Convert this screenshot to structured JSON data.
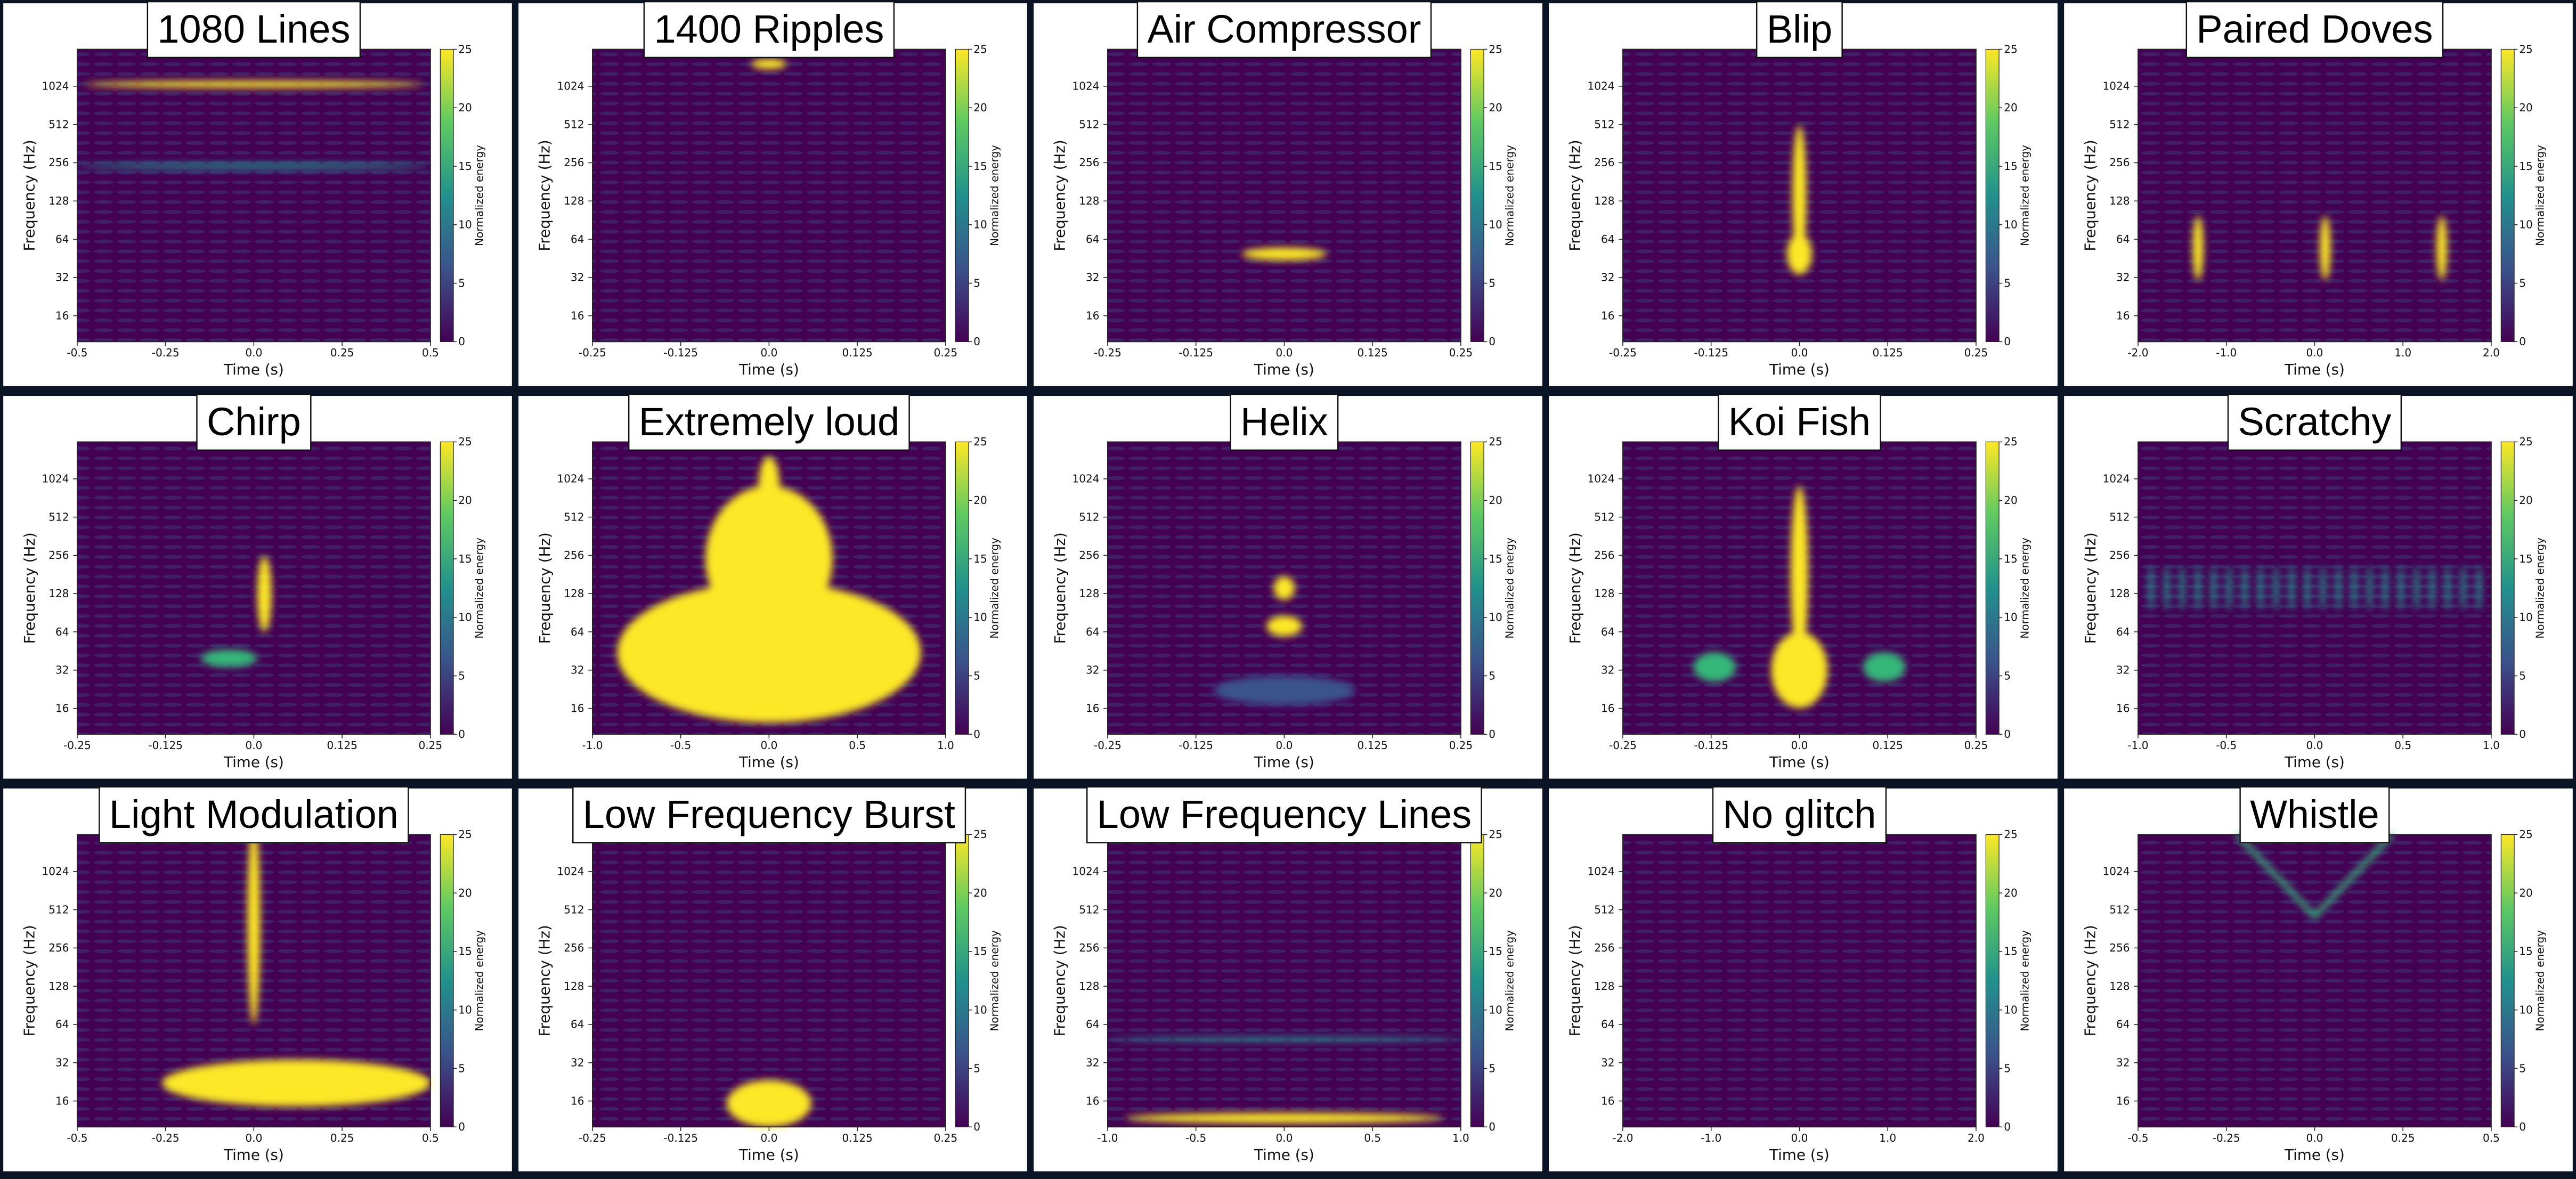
{
  "chart_data": [
    {
      "type": "spectrogram",
      "title": "1080 Lines",
      "x_label": "Time (s)",
      "y_label": "Frequency (Hz)",
      "colorbar_label": "Normalized energy",
      "cmap": "viridis",
      "y_log": true,
      "xlim": [
        -0.5,
        0.5
      ],
      "xticks": [
        -0.5,
        -0.25,
        {
          "value": 0,
          "label": "0.0"
        },
        0.25,
        0.5
      ],
      "ylim": [
        10,
        2000
      ],
      "yticks": [
        16,
        32,
        64,
        128,
        256,
        512,
        1024
      ],
      "clim": [
        0,
        25
      ],
      "cticks": [
        0,
        5,
        10,
        15,
        20,
        25
      ]
    },
    {
      "type": "spectrogram",
      "title": "1400 Ripples",
      "x_label": "Time (s)",
      "y_label": "Frequency (Hz)",
      "colorbar_label": "Normalized energy",
      "cmap": "viridis",
      "y_log": true,
      "xlim": [
        -0.25,
        0.25
      ],
      "xticks": [
        -0.25,
        -0.125,
        {
          "value": 0,
          "label": "0.0"
        },
        0.125,
        0.25
      ],
      "ylim": [
        10,
        2000
      ],
      "yticks": [
        16,
        32,
        64,
        128,
        256,
        512,
        1024
      ],
      "clim": [
        0,
        25
      ],
      "cticks": [
        0,
        5,
        10,
        15,
        20,
        25
      ]
    },
    {
      "type": "spectrogram",
      "title": "Air Compressor",
      "x_label": "Time (s)",
      "y_label": "Frequency (Hz)",
      "colorbar_label": "Normalized energy",
      "cmap": "viridis",
      "y_log": true,
      "xlim": [
        -0.25,
        0.25
      ],
      "xticks": [
        -0.25,
        -0.125,
        {
          "value": 0,
          "label": "0.0"
        },
        0.125,
        0.25
      ],
      "ylim": [
        10,
        2000
      ],
      "yticks": [
        16,
        32,
        64,
        128,
        256,
        512,
        1024
      ],
      "clim": [
        0,
        25
      ],
      "cticks": [
        0,
        5,
        10,
        15,
        20,
        25
      ]
    },
    {
      "type": "spectrogram",
      "title": "Blip",
      "x_label": "Time (s)",
      "y_label": "Frequency (Hz)",
      "colorbar_label": "Normalized energy",
      "cmap": "viridis",
      "y_log": true,
      "xlim": [
        -0.25,
        0.25
      ],
      "xticks": [
        -0.25,
        -0.125,
        {
          "value": 0,
          "label": "0.0"
        },
        0.125,
        0.25
      ],
      "ylim": [
        10,
        2000
      ],
      "yticks": [
        16,
        32,
        64,
        128,
        256,
        512,
        1024
      ],
      "clim": [
        0,
        25
      ],
      "cticks": [
        0,
        5,
        10,
        15,
        20,
        25
      ]
    },
    {
      "type": "spectrogram",
      "title": "Paired Doves",
      "x_label": "Time (s)",
      "y_label": "Frequency (Hz)",
      "colorbar_label": "Normalized energy",
      "cmap": "viridis",
      "y_log": true,
      "xlim": [
        -2,
        2
      ],
      "xticks": [
        {
          "value": -2,
          "label": "-2.0"
        },
        {
          "value": -1,
          "label": "-1.0"
        },
        {
          "value": 0,
          "label": "0.0"
        },
        {
          "value": 1,
          "label": "1.0"
        },
        {
          "value": 2,
          "label": "2.0"
        }
      ],
      "ylim": [
        10,
        2000
      ],
      "yticks": [
        16,
        32,
        64,
        128,
        256,
        512,
        1024
      ],
      "clim": [
        0,
        25
      ],
      "cticks": [
        0,
        5,
        10,
        15,
        20,
        25
      ]
    },
    {
      "type": "spectrogram",
      "title": "Chirp",
      "x_label": "Time (s)",
      "y_label": "Frequency (Hz)",
      "colorbar_label": "Normalized energy",
      "cmap": "viridis",
      "y_log": true,
      "xlim": [
        -0.25,
        0.25
      ],
      "xticks": [
        -0.25,
        -0.125,
        {
          "value": 0,
          "label": "0.0"
        },
        0.125,
        0.25
      ],
      "ylim": [
        10,
        2000
      ],
      "yticks": [
        16,
        32,
        64,
        128,
        256,
        512,
        1024
      ],
      "clim": [
        0,
        25
      ],
      "cticks": [
        0,
        5,
        10,
        15,
        20,
        25
      ]
    },
    {
      "type": "spectrogram",
      "title": "Extremely loud",
      "x_label": "Time (s)",
      "y_label": "Frequency (Hz)",
      "colorbar_label": "Normalized energy",
      "cmap": "viridis",
      "y_log": true,
      "xlim": [
        -1,
        1
      ],
      "xticks": [
        {
          "value": -1,
          "label": "-1.0"
        },
        -0.5,
        {
          "value": 0,
          "label": "0.0"
        },
        0.5,
        {
          "value": 1,
          "label": "1.0"
        }
      ],
      "ylim": [
        10,
        2000
      ],
      "yticks": [
        16,
        32,
        64,
        128,
        256,
        512,
        1024
      ],
      "clim": [
        0,
        25
      ],
      "cticks": [
        0,
        5,
        10,
        15,
        20,
        25
      ]
    },
    {
      "type": "spectrogram",
      "title": "Helix",
      "x_label": "Time (s)",
      "y_label": "Frequency (Hz)",
      "colorbar_label": "Normalized energy",
      "cmap": "viridis",
      "y_log": true,
      "xlim": [
        -0.25,
        0.25
      ],
      "xticks": [
        -0.25,
        -0.125,
        {
          "value": 0,
          "label": "0.0"
        },
        0.125,
        0.25
      ],
      "ylim": [
        10,
        2000
      ],
      "yticks": [
        16,
        32,
        64,
        128,
        256,
        512,
        1024
      ],
      "clim": [
        0,
        25
      ],
      "cticks": [
        0,
        5,
        10,
        15,
        20,
        25
      ]
    },
    {
      "type": "spectrogram",
      "title": "Koi Fish",
      "x_label": "Time (s)",
      "y_label": "Frequency (Hz)",
      "colorbar_label": "Normalized energy",
      "cmap": "viridis",
      "y_log": true,
      "xlim": [
        -0.25,
        0.25
      ],
      "xticks": [
        -0.25,
        -0.125,
        {
          "value": 0,
          "label": "0.0"
        },
        0.125,
        0.25
      ],
      "ylim": [
        10,
        2000
      ],
      "yticks": [
        16,
        32,
        64,
        128,
        256,
        512,
        1024
      ],
      "clim": [
        0,
        25
      ],
      "cticks": [
        0,
        5,
        10,
        15,
        20,
        25
      ]
    },
    {
      "type": "spectrogram",
      "title": "Scratchy",
      "x_label": "Time (s)",
      "y_label": "Frequency (Hz)",
      "colorbar_label": "Normalized energy",
      "cmap": "viridis",
      "y_log": true,
      "xlim": [
        -1,
        1
      ],
      "xticks": [
        {
          "value": -1,
          "label": "-1.0"
        },
        -0.5,
        {
          "value": 0,
          "label": "0.0"
        },
        0.5,
        {
          "value": 1,
          "label": "1.0"
        }
      ],
      "ylim": [
        10,
        2000
      ],
      "yticks": [
        16,
        32,
        64,
        128,
        256,
        512,
        1024
      ],
      "clim": [
        0,
        25
      ],
      "cticks": [
        0,
        5,
        10,
        15,
        20,
        25
      ]
    },
    {
      "type": "spectrogram",
      "title": "Light Modulation",
      "x_label": "Time (s)",
      "y_label": "Frequency (Hz)",
      "colorbar_label": "Normalized energy",
      "cmap": "viridis",
      "y_log": true,
      "xlim": [
        -0.5,
        0.5
      ],
      "xticks": [
        -0.5,
        -0.25,
        {
          "value": 0,
          "label": "0.0"
        },
        0.25,
        0.5
      ],
      "ylim": [
        10,
        2000
      ],
      "yticks": [
        16,
        32,
        64,
        128,
        256,
        512,
        1024
      ],
      "clim": [
        0,
        25
      ],
      "cticks": [
        0,
        5,
        10,
        15,
        20,
        25
      ]
    },
    {
      "type": "spectrogram",
      "title": "Low Frequency Burst",
      "x_label": "Time (s)",
      "y_label": "Frequency (Hz)",
      "colorbar_label": "Normalized energy",
      "cmap": "viridis",
      "y_log": true,
      "xlim": [
        -0.25,
        0.25
      ],
      "xticks": [
        -0.25,
        -0.125,
        {
          "value": 0,
          "label": "0.0"
        },
        0.125,
        0.25
      ],
      "ylim": [
        10,
        2000
      ],
      "yticks": [
        16,
        32,
        64,
        128,
        256,
        512,
        1024
      ],
      "clim": [
        0,
        25
      ],
      "cticks": [
        0,
        5,
        10,
        15,
        20,
        25
      ]
    },
    {
      "type": "spectrogram",
      "title": "Low Frequency Lines",
      "x_label": "Time (s)",
      "y_label": "Frequency (Hz)",
      "colorbar_label": "Normalized energy",
      "cmap": "viridis",
      "y_log": true,
      "xlim": [
        -1,
        1
      ],
      "xticks": [
        {
          "value": -1,
          "label": "-1.0"
        },
        -0.5,
        {
          "value": 0,
          "label": "0.0"
        },
        0.5,
        {
          "value": 1,
          "label": "1.0"
        }
      ],
      "ylim": [
        10,
        2000
      ],
      "yticks": [
        16,
        32,
        64,
        128,
        256,
        512,
        1024
      ],
      "clim": [
        0,
        25
      ],
      "cticks": [
        0,
        5,
        10,
        15,
        20,
        25
      ]
    },
    {
      "type": "spectrogram",
      "title": "No glitch",
      "x_label": "Time (s)",
      "y_label": "Frequency (Hz)",
      "colorbar_label": "Normalized energy",
      "cmap": "viridis",
      "y_log": true,
      "xlim": [
        -2,
        2
      ],
      "xticks": [
        {
          "value": -2,
          "label": "-2.0"
        },
        {
          "value": -1,
          "label": "-1.0"
        },
        {
          "value": 0,
          "label": "0.0"
        },
        {
          "value": 1,
          "label": "1.0"
        },
        {
          "value": 2,
          "label": "2.0"
        }
      ],
      "ylim": [
        10,
        2000
      ],
      "yticks": [
        16,
        32,
        64,
        128,
        256,
        512,
        1024
      ],
      "clim": [
        0,
        25
      ],
      "cticks": [
        0,
        5,
        10,
        15,
        20,
        25
      ]
    },
    {
      "type": "spectrogram",
      "title": "Whistle",
      "x_label": "Time (s)",
      "y_label": "Frequency (Hz)",
      "colorbar_label": "Normalized energy",
      "cmap": "viridis",
      "y_log": true,
      "xlim": [
        -0.5,
        0.5
      ],
      "xticks": [
        -0.5,
        -0.25,
        {
          "value": 0,
          "label": "0.0"
        },
        0.25,
        0.5
      ],
      "ylim": [
        10,
        2000
      ],
      "yticks": [
        16,
        32,
        64,
        128,
        256,
        512,
        1024
      ],
      "clim": [
        0,
        25
      ],
      "cticks": [
        0,
        5,
        10,
        15,
        20,
        25
      ]
    }
  ]
}
